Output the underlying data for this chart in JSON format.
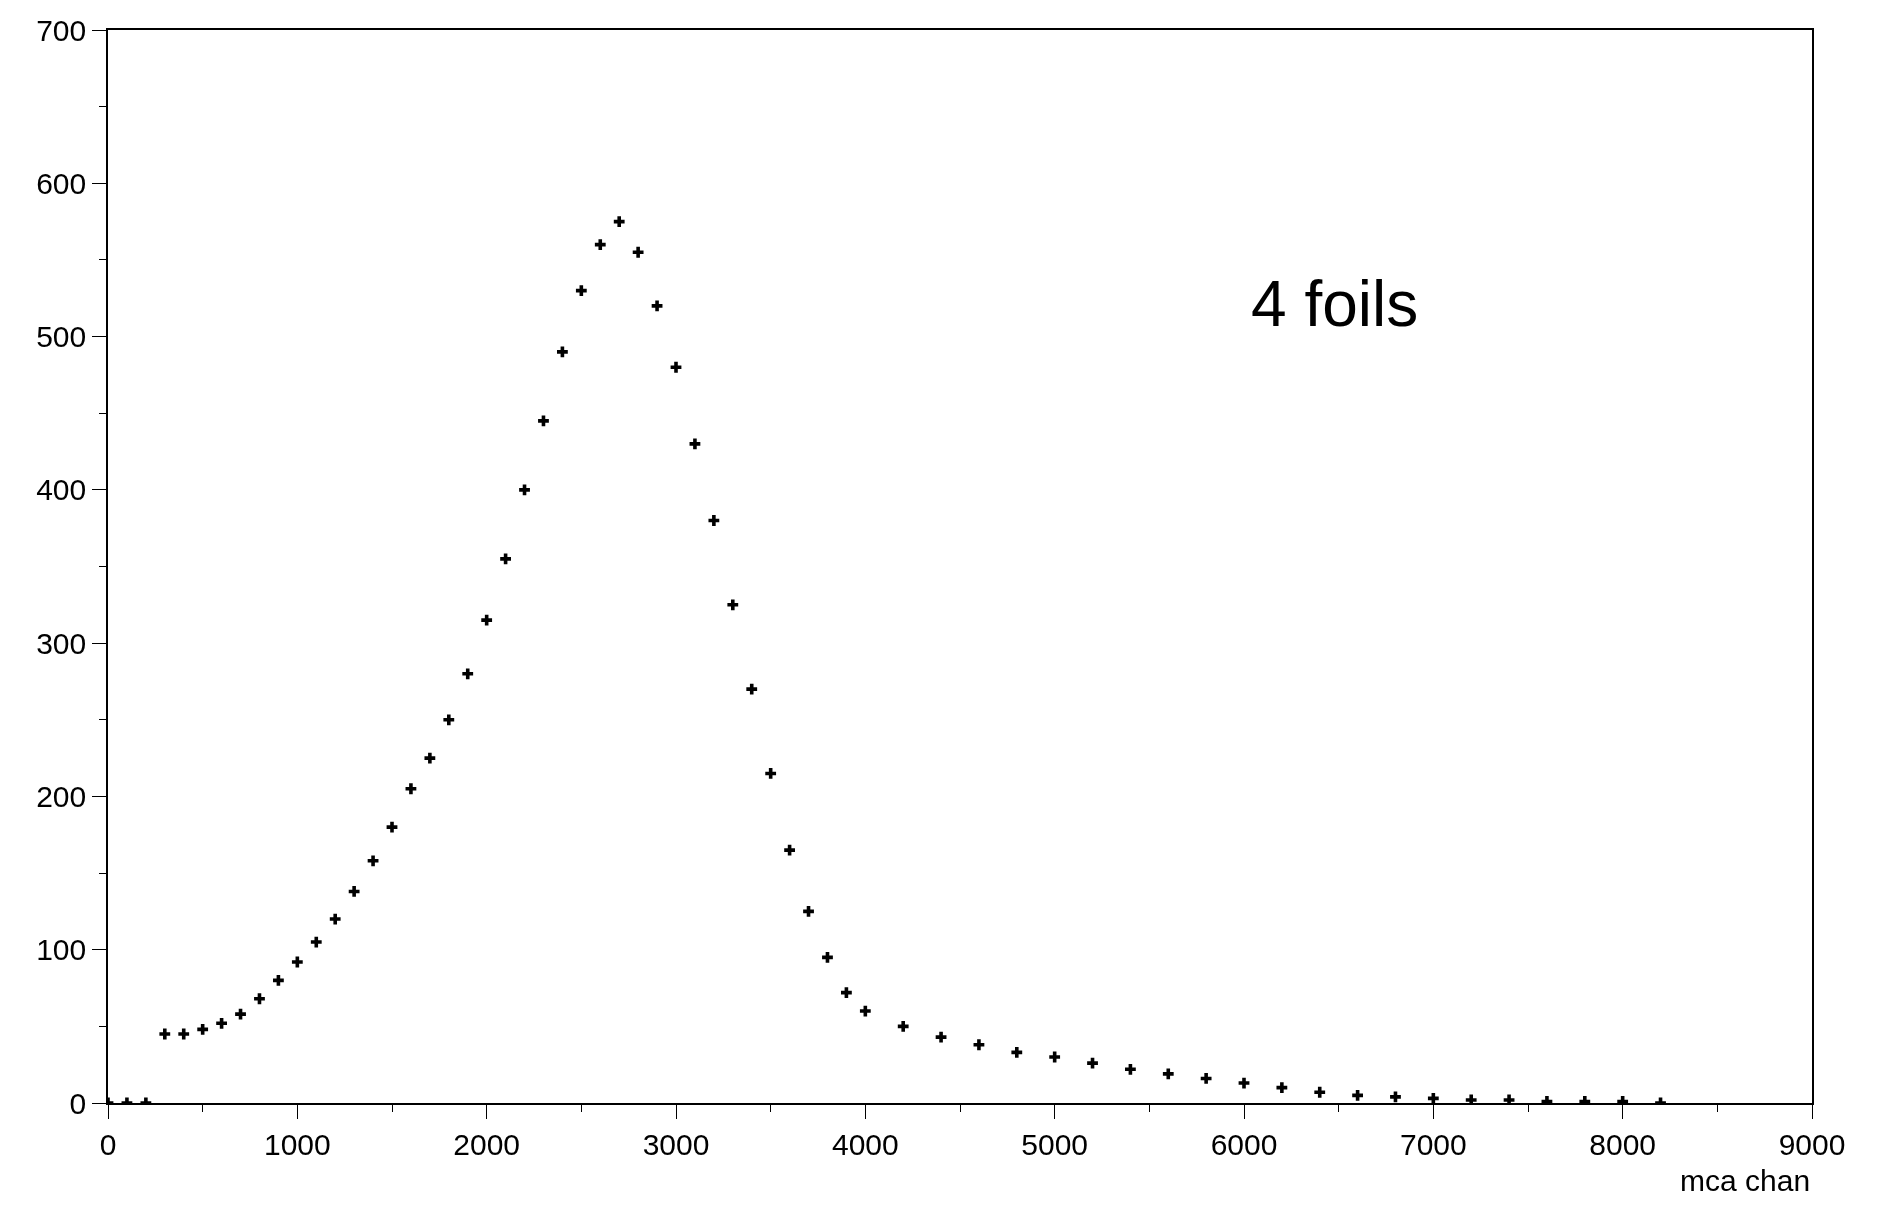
{
  "chart_data": {
    "type": "scatter",
    "xlabel": "mca chan",
    "annotations": [
      "4 foils"
    ],
    "marker": "cross",
    "x": [
      0,
      100,
      200,
      300,
      400,
      500,
      600,
      700,
      800,
      900,
      1000,
      1100,
      1200,
      1300,
      1400,
      1500,
      1600,
      1700,
      1800,
      1900,
      2000,
      2100,
      2200,
      2300,
      2400,
      2500,
      2600,
      2700,
      2800,
      2900,
      3000,
      3100,
      3200,
      3300,
      3400,
      3500,
      3600,
      3700,
      3800,
      3900,
      4000,
      4200,
      4400,
      4600,
      4800,
      5000,
      5200,
      5400,
      5600,
      5800,
      6000,
      6200,
      6400,
      6600,
      6800,
      7000,
      7200,
      7400,
      7600,
      7800,
      8000,
      8200
    ],
    "series": [
      {
        "color": "#000000",
        "values": [
          0,
          0,
          0,
          45,
          45,
          48,
          52,
          58,
          68,
          80,
          92,
          105,
          120,
          138,
          158,
          180,
          205,
          225,
          250,
          280,
          315,
          355,
          400,
          445,
          490,
          530,
          560,
          575,
          555,
          520,
          480,
          430,
          380,
          325,
          270,
          215,
          165,
          125,
          95,
          72,
          60,
          50,
          43,
          38,
          33,
          30,
          26,
          22,
          19,
          16,
          13,
          10,
          7,
          5,
          4,
          3,
          2,
          2,
          1,
          1,
          1,
          0
        ]
      }
    ],
    "xlim": [
      0,
      9000
    ],
    "xticks": [
      0,
      1000,
      2000,
      3000,
      4000,
      5000,
      6000,
      7000,
      8000,
      9000
    ],
    "ylim": [
      0,
      700
    ],
    "yticks": [
      0,
      100,
      200,
      300,
      400,
      500,
      600,
      700
    ]
  }
}
